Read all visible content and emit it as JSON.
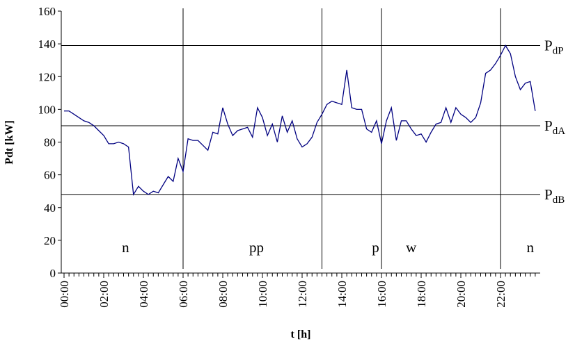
{
  "chart_data": {
    "type": "line",
    "y_label": "Pdt [kW]",
    "x_label": "t [h]",
    "x": [
      0,
      0.25,
      0.5,
      0.75,
      1,
      1.25,
      1.5,
      1.75,
      2,
      2.25,
      2.5,
      2.75,
      3,
      3.25,
      3.5,
      3.75,
      4,
      4.25,
      4.5,
      4.75,
      5,
      5.25,
      5.5,
      5.75,
      6,
      6.25,
      6.5,
      6.75,
      7,
      7.25,
      7.5,
      7.75,
      8,
      8.25,
      8.5,
      8.75,
      9,
      9.25,
      9.5,
      9.75,
      10,
      10.25,
      10.5,
      10.75,
      11,
      11.25,
      11.5,
      11.75,
      12,
      12.25,
      12.5,
      12.75,
      13,
      13.25,
      13.5,
      13.75,
      14,
      14.25,
      14.5,
      14.75,
      15,
      15.25,
      15.5,
      15.75,
      16,
      16.25,
      16.5,
      16.75,
      17,
      17.25,
      17.5,
      17.75,
      18,
      18.25,
      18.5,
      18.75,
      19,
      19.25,
      19.5,
      19.75,
      20,
      20.25,
      20.5,
      20.75,
      21,
      21.25,
      21.5,
      21.75,
      22,
      22.25,
      22.5,
      22.75,
      23,
      23.25,
      23.5,
      23.75
    ],
    "series": [
      {
        "color": "#000080",
        "values": [
          99,
          99,
          97,
          95,
          93,
          92,
          90,
          87,
          84,
          79,
          79,
          80,
          79,
          77,
          48,
          53,
          50,
          48,
          50,
          49,
          54,
          59,
          56,
          70,
          62,
          82,
          81,
          81,
          78,
          75,
          86,
          85,
          101,
          91,
          84,
          87,
          88,
          89,
          83,
          101,
          95,
          84,
          91,
          80,
          96,
          86,
          93,
          82,
          77,
          79,
          83,
          92,
          97,
          103,
          105,
          104,
          103,
          124,
          101,
          100,
          100,
          88,
          86,
          93,
          79,
          93,
          101,
          81,
          93,
          93,
          88,
          84,
          85,
          80,
          86,
          91,
          92,
          101,
          92,
          101,
          97,
          95,
          92,
          95,
          104,
          122,
          124,
          128,
          133,
          139,
          134,
          120,
          112,
          116,
          117,
          99
        ]
      }
    ],
    "xlim": [
      0,
      24
    ],
    "xticks": [
      {
        "value": 0,
        "label": "00:00"
      },
      {
        "value": 2,
        "label": "02:00"
      },
      {
        "value": 4,
        "label": "04:00"
      },
      {
        "value": 6,
        "label": "06:00"
      },
      {
        "value": 8,
        "label": "08:00"
      },
      {
        "value": 10,
        "label": "10:00"
      },
      {
        "value": 12,
        "label": "12:00"
      },
      {
        "value": 14,
        "label": "14:00"
      },
      {
        "value": 16,
        "label": "16:00"
      },
      {
        "value": 18,
        "label": "18:00"
      },
      {
        "value": 20,
        "label": "20:00"
      },
      {
        "value": 22,
        "label": "22:00"
      }
    ],
    "ylim": [
      0,
      160
    ],
    "yticks": [
      0,
      20,
      40,
      60,
      80,
      100,
      120,
      140,
      160
    ],
    "hlines": [
      {
        "value": 139,
        "label": "P",
        "sub": "dP"
      },
      {
        "value": 90,
        "label": "P",
        "sub": "dA"
      },
      {
        "value": 48,
        "label": "P",
        "sub": "dB"
      }
    ],
    "vlines": [
      6,
      13,
      16,
      22
    ],
    "zones": [
      "n",
      "pp",
      "p",
      "w",
      "n"
    ],
    "grid": false
  }
}
